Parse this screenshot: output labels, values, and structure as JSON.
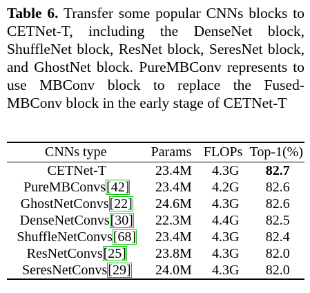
{
  "caption": {
    "label": "Table 6.",
    "text": "Transfer some popular CNNs blocks to CETNet-T, including the DenseNet block, ShuffleNet block, ResNet block, SeresNet block, and GhostNet block. PureMBConv represents to use MBConv block to replace the Fused-MBConv block in the early stage of CETNet-T"
  },
  "table": {
    "headers": [
      "CNNs type",
      "Params",
      "FLOPs",
      "Top-1(%)"
    ],
    "rows": [
      {
        "name": "CETNet-T",
        "ref": "",
        "params": "23.4M",
        "flops": "4.3G",
        "top1": "82.7",
        "bold_top1": true
      },
      {
        "name": "PureMBConvs",
        "ref": "[42]",
        "params": "23.4M",
        "flops": "4.2G",
        "top1": "82.6",
        "bold_top1": false
      },
      {
        "name": "GhostNetConvs",
        "ref": "[22]",
        "params": "24.6M",
        "flops": "4.3G",
        "top1": "82.6",
        "bold_top1": false
      },
      {
        "name": "DenseNetConvs",
        "ref": "[30]",
        "params": "22.3M",
        "flops": "4.4G",
        "top1": "82.5",
        "bold_top1": false
      },
      {
        "name": "ShuffleNetConvs",
        "ref": "[68]",
        "params": "23.4M",
        "flops": "4.3G",
        "top1": "82.4",
        "bold_top1": false
      },
      {
        "name": "ResNetConvs",
        "ref": "[25]",
        "params": "23.8M",
        "flops": "4.3G",
        "top1": "82.0",
        "bold_top1": false
      },
      {
        "name": "SeresNetConvs",
        "ref": "[29]",
        "params": "24.0M",
        "flops": "4.3G",
        "top1": "82.0",
        "bold_top1": false
      }
    ]
  },
  "colors": {
    "citation_box": "#00cc00"
  }
}
